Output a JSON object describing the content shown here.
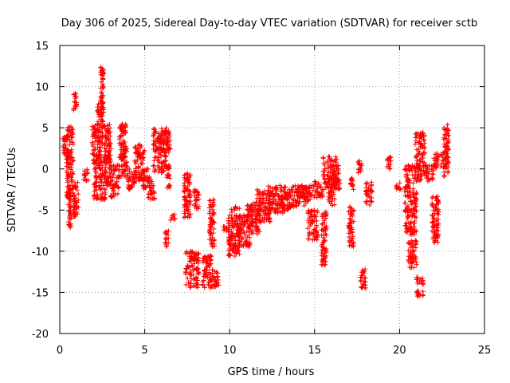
{
  "chart_data": {
    "type": "scatter",
    "title": "Day 306 of 2025, Sidereal Day-to-day VTEC variation (SDTVAR) for receiver sctb",
    "xlabel": "GPS time / hours",
    "ylabel": "SDTVAR / TECUs",
    "xlim": [
      0,
      25
    ],
    "ylim": [
      -20,
      15
    ],
    "xticks": [
      0,
      5,
      10,
      15,
      20,
      25
    ],
    "yticks": [
      -20,
      -15,
      -10,
      -5,
      0,
      5,
      10,
      15
    ],
    "grid": true,
    "marker": "+",
    "series": [
      {
        "name": "sctb",
        "color": "#ff0000",
        "clusters": [
          {
            "x": [
              0.2,
              0.5
            ],
            "y": [
              1.5,
              4.0
            ]
          },
          {
            "x": [
              0.4,
              0.8
            ],
            "y": [
              -3.5,
              5.2
            ]
          },
          {
            "x": [
              0.5,
              0.7
            ],
            "y": [
              -7.3,
              -3.0
            ]
          },
          {
            "x": [
              0.8,
              1.1
            ],
            "y": [
              -6.0,
              -1.5
            ]
          },
          {
            "x": [
              0.8,
              1.0
            ],
            "y": [
              7.0,
              9.2
            ]
          },
          {
            "x": [
              1.4,
              1.7
            ],
            "y": [
              -1.5,
              0.0
            ]
          },
          {
            "x": [
              1.9,
              2.4
            ],
            "y": [
              1.0,
              5.5
            ]
          },
          {
            "x": [
              2.0,
              2.7
            ],
            "y": [
              -3.8,
              2.0
            ]
          },
          {
            "x": [
              2.2,
              2.6
            ],
            "y": [
              3.0,
              8.0
            ]
          },
          {
            "x": [
              2.4,
              2.6
            ],
            "y": [
              8.0,
              12.5
            ]
          },
          {
            "x": [
              2.6,
              3.0
            ],
            "y": [
              -2.0,
              5.5
            ]
          },
          {
            "x": [
              3.0,
              3.5
            ],
            "y": [
              -3.5,
              0.5
            ]
          },
          {
            "x": [
              3.5,
              3.9
            ],
            "y": [
              1.0,
              5.5
            ]
          },
          {
            "x": [
              3.6,
              4.0
            ],
            "y": [
              -1.0,
              2.5
            ]
          },
          {
            "x": [
              4.0,
              4.4
            ],
            "y": [
              -2.8,
              0.0
            ]
          },
          {
            "x": [
              4.4,
              5.0
            ],
            "y": [
              -1.5,
              3.0
            ]
          },
          {
            "x": [
              4.9,
              5.2
            ],
            "y": [
              -2.5,
              0.0
            ]
          },
          {
            "x": [
              5.2,
              5.6
            ],
            "y": [
              -3.8,
              -1.0
            ]
          },
          {
            "x": [
              5.5,
              6.3
            ],
            "y": [
              -0.5,
              5.0
            ]
          },
          {
            "x": [
              6.1,
              6.5
            ],
            "y": [
              2.0,
              4.8
            ]
          },
          {
            "x": [
              6.3,
              6.5
            ],
            "y": [
              -2.5,
              0.5
            ]
          },
          {
            "x": [
              6.2,
              6.4
            ],
            "y": [
              -9.5,
              -7.5
            ]
          },
          {
            "x": [
              6.5,
              6.8
            ],
            "y": [
              -6.3,
              -5.5
            ]
          },
          {
            "x": [
              7.3,
              7.7
            ],
            "y": [
              -6.2,
              -0.5
            ]
          },
          {
            "x": [
              7.4,
              8.2
            ],
            "y": [
              -14.5,
              -10.0
            ]
          },
          {
            "x": [
              7.9,
              8.2
            ],
            "y": [
              -5.0,
              -2.5
            ]
          },
          {
            "x": [
              8.4,
              9.0
            ],
            "y": [
              -14.5,
              -10.5
            ]
          },
          {
            "x": [
              8.8,
              9.1
            ],
            "y": [
              -9.5,
              -3.5
            ]
          },
          {
            "x": [
              9.0,
              9.4
            ],
            "y": [
              -14.5,
              -12.5
            ]
          },
          {
            "x": [
              9.6,
              9.9
            ],
            "y": [
              -7.8,
              -7.0
            ]
          },
          {
            "x": [
              9.9,
              10.6
            ],
            "y": [
              -10.6,
              -4.5
            ]
          },
          {
            "x": [
              10.5,
              11.2
            ],
            "y": [
              -9.5,
              -5.5
            ]
          },
          {
            "x": [
              11.0,
              11.8
            ],
            "y": [
              -8.0,
              -4.0
            ]
          },
          {
            "x": [
              11.6,
              12.4
            ],
            "y": [
              -6.5,
              -2.5
            ]
          },
          {
            "x": [
              12.2,
              13.3
            ],
            "y": [
              -5.5,
              -2.0
            ]
          },
          {
            "x": [
              13.0,
              14.0
            ],
            "y": [
              -5.0,
              -2.5
            ]
          },
          {
            "x": [
              13.6,
              14.5
            ],
            "y": [
              -4.5,
              -2.0
            ]
          },
          {
            "x": [
              14.3,
              15.0
            ],
            "y": [
              -4.0,
              -2.0
            ]
          },
          {
            "x": [
              14.6,
              15.2
            ],
            "y": [
              -8.7,
              -5.0
            ]
          },
          {
            "x": [
              15.0,
              15.5
            ],
            "y": [
              -3.5,
              -1.5
            ]
          },
          {
            "x": [
              15.4,
              15.7
            ],
            "y": [
              -11.8,
              -5.0
            ]
          },
          {
            "x": [
              15.5,
              16.3
            ],
            "y": [
              -2.5,
              1.5
            ]
          },
          {
            "x": [
              15.8,
              16.2
            ],
            "y": [
              -4.5,
              -1.5
            ]
          },
          {
            "x": [
              16.1,
              16.5
            ],
            "y": [
              -2.5,
              0.5
            ]
          },
          {
            "x": [
              17.0,
              17.3
            ],
            "y": [
              -9.5,
              -4.5
            ]
          },
          {
            "x": [
              17.1,
              17.3
            ],
            "y": [
              -2.5,
              -1.0
            ]
          },
          {
            "x": [
              17.5,
              17.8
            ],
            "y": [
              -0.5,
              1.0
            ]
          },
          {
            "x": [
              17.7,
              18.0
            ],
            "y": [
              -14.5,
              -12.0
            ]
          },
          {
            "x": [
              18.0,
              18.4
            ],
            "y": [
              -4.5,
              -1.5
            ]
          },
          {
            "x": [
              19.2,
              19.5
            ],
            "y": [
              0.0,
              1.5
            ]
          },
          {
            "x": [
              19.8,
              20.1
            ],
            "y": [
              -2.5,
              -1.5
            ]
          },
          {
            "x": [
              20.3,
              21.0
            ],
            "y": [
              -8.0,
              0.5
            ]
          },
          {
            "x": [
              20.5,
              21.0
            ],
            "y": [
              -12.0,
              -8.5
            ]
          },
          {
            "x": [
              20.9,
              21.5
            ],
            "y": [
              -1.5,
              4.5
            ]
          },
          {
            "x": [
              21.0,
              21.4
            ],
            "y": [
              -15.5,
              -13.0
            ]
          },
          {
            "x": [
              21.5,
              22.0
            ],
            "y": [
              -1.5,
              0.5
            ]
          },
          {
            "x": [
              21.9,
              22.3
            ],
            "y": [
              -9.0,
              -3.0
            ]
          },
          {
            "x": [
              22.0,
              22.6
            ],
            "y": [
              0.0,
              2.0
            ]
          },
          {
            "x": [
              22.6,
              22.9
            ],
            "y": [
              -1.0,
              5.5
            ]
          }
        ]
      }
    ]
  }
}
